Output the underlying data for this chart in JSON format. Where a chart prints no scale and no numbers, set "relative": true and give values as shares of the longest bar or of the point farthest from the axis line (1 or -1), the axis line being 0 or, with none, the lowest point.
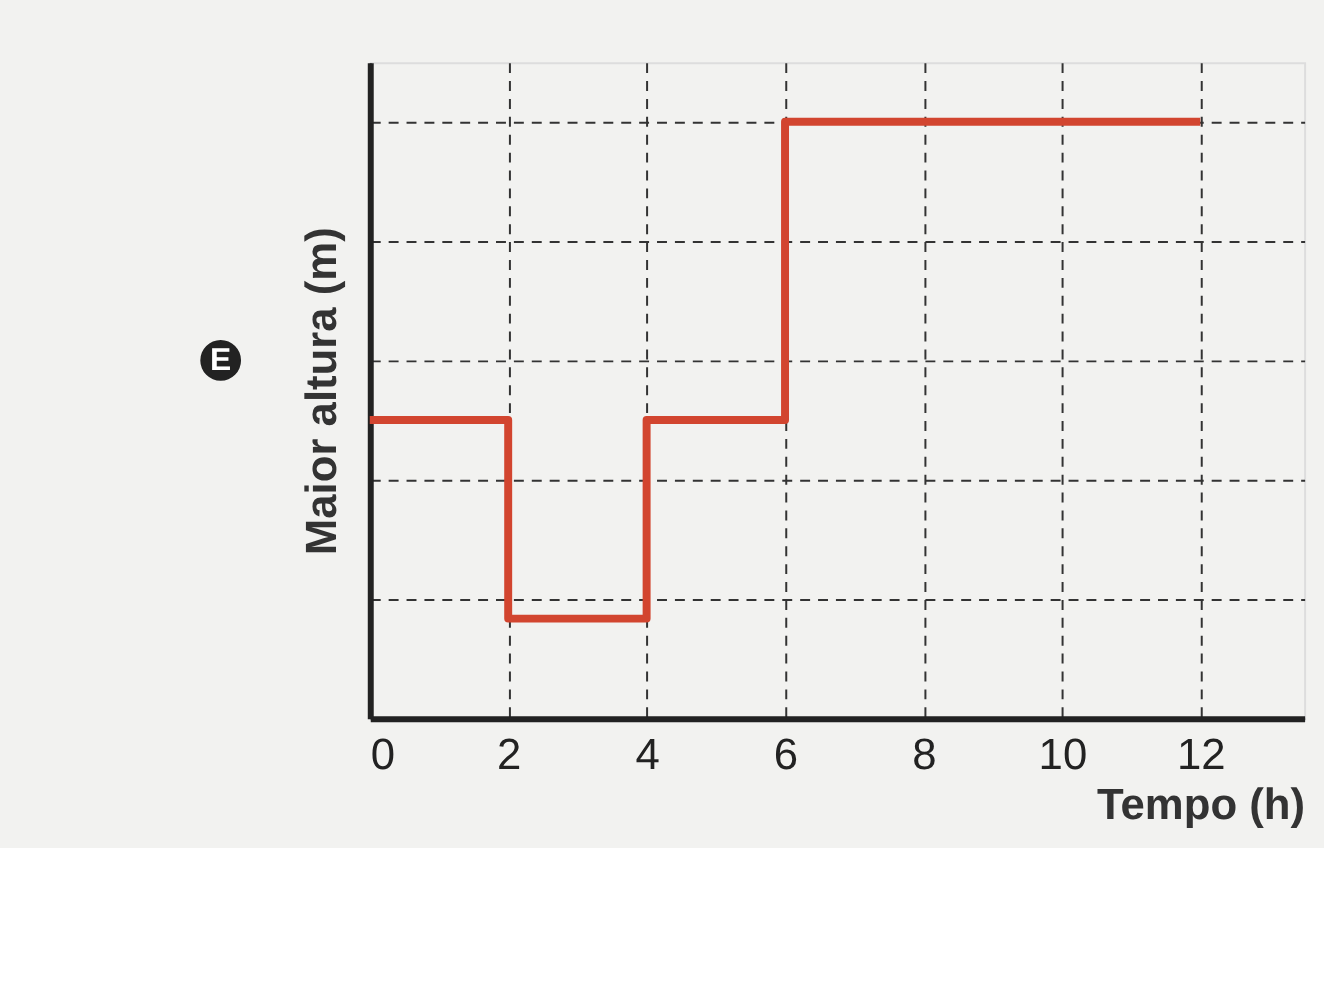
{
  "chart_data": {
    "type": "step",
    "relative": true,
    "xlabel": "Tempo (h)",
    "ylabel": "Maior altura (m)",
    "x": [
      0,
      2,
      4,
      6,
      12
    ],
    "series": [
      {
        "color": "#d2452f",
        "values": [
          0.5,
          0.167,
          0.5,
          1,
          1
        ]
      }
    ],
    "xlim": [
      0,
      13.5
    ],
    "xticks": [
      0,
      2,
      4,
      6,
      8,
      10,
      12
    ],
    "grid": true,
    "marker": "none",
    "line_style": "solid",
    "annotations": [
      "E"
    ]
  }
}
